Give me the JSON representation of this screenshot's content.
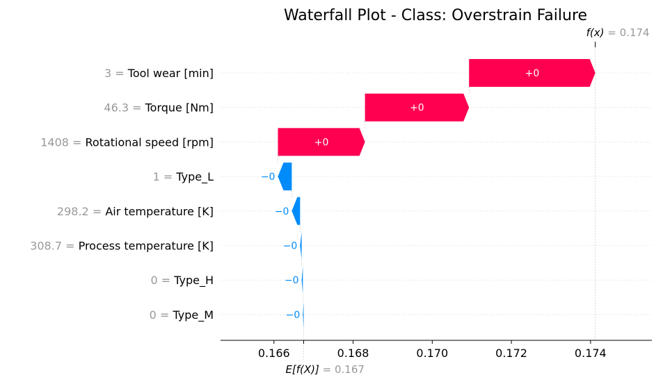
{
  "chart_data": {
    "type": "waterfall",
    "title": "Waterfall Plot - Class: Overstrain Failure",
    "fx_label": "f(x)",
    "fx_value": "0.174",
    "ex_label": "E[f(X)]",
    "ex_value": "0.167",
    "base_value": 0.16675,
    "final_value": 0.17412,
    "xlim": [
      0.16465,
      0.17555
    ],
    "xticks": [
      0.166,
      0.168,
      0.17,
      0.172,
      0.174
    ],
    "xtick_labels": [
      "0.166",
      "0.168",
      "0.170",
      "0.172",
      "0.174"
    ],
    "colors": {
      "positive": "#ff0051",
      "negative": "#008bfb",
      "muted": "#999999"
    },
    "features": [
      {
        "value": "3",
        "name": "Tool wear [min]",
        "start": 0.17093,
        "end": 0.17412,
        "label": "+0"
      },
      {
        "value": "46.3",
        "name": "Torque [Nm]",
        "start": 0.1683,
        "end": 0.17093,
        "label": "+0"
      },
      {
        "value": "1408",
        "name": "Rotational speed [rpm]",
        "start": 0.1661,
        "end": 0.1683,
        "label": "+0"
      },
      {
        "value": "1",
        "name": "Type_L",
        "start": 0.16645,
        "end": 0.1661,
        "label": "−0"
      },
      {
        "value": "298.2",
        "name": "Air temperature [K]",
        "start": 0.16666,
        "end": 0.16645,
        "label": "−0"
      },
      {
        "value": "308.7",
        "name": "Process temperature [K]",
        "start": 0.1667,
        "end": 0.16666,
        "label": "−0"
      },
      {
        "value": "0",
        "name": "Type_H",
        "start": 0.16673,
        "end": 0.1667,
        "label": "−0"
      },
      {
        "value": "0",
        "name": "Type_M",
        "start": 0.16675,
        "end": 0.16673,
        "label": "−0"
      }
    ]
  }
}
